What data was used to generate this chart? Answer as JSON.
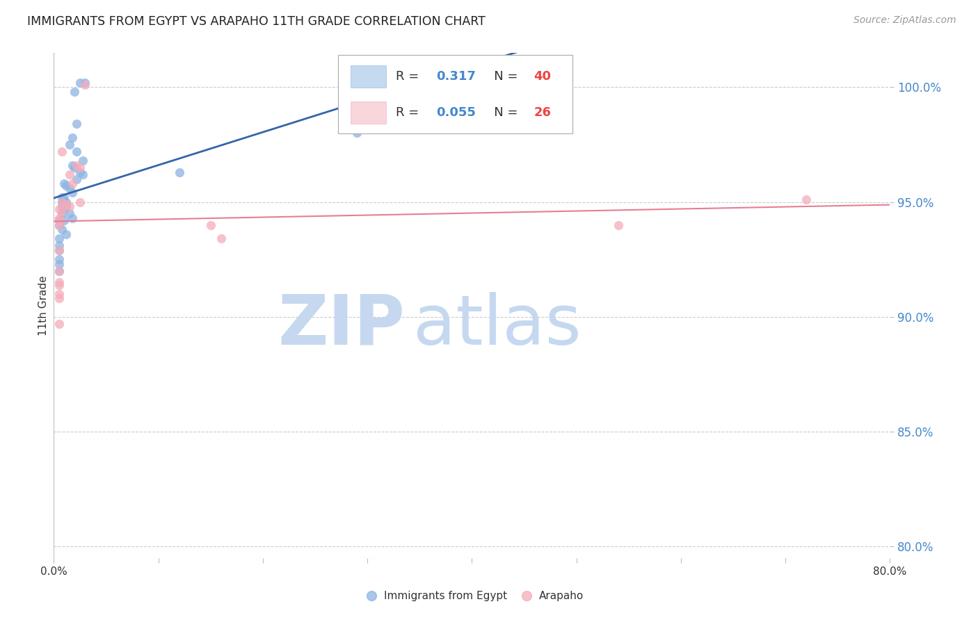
{
  "title": "IMMIGRANTS FROM EGYPT VS ARAPAHO 11TH GRADE CORRELATION CHART",
  "source": "Source: ZipAtlas.com",
  "ylabel": "11th Grade",
  "xlim": [
    0.0,
    0.8
  ],
  "ylim": [
    0.795,
    1.015
  ],
  "yticks": [
    0.8,
    0.85,
    0.9,
    0.95,
    1.0
  ],
  "ytick_labels": [
    "80.0%",
    "85.0%",
    "90.0%",
    "95.0%",
    "100.0%"
  ],
  "xtick_labels": [
    "0.0%",
    "",
    "",
    "",
    "",
    "",
    "",
    "",
    "80.0%"
  ],
  "legend_r1_text": "R = ",
  "legend_r1_val": "0.317",
  "legend_n1_text": "N = ",
  "legend_n1_val": "40",
  "legend_r2_text": "R = ",
  "legend_r2_val": "0.055",
  "legend_n2_text": "N = ",
  "legend_n2_val": "26",
  "blue_color": "#8DB4E2",
  "pink_color": "#F4ACBA",
  "line_blue": "#3465A8",
  "line_pink": "#E87D94",
  "marker_size": 90,
  "blue_x": [
    0.025,
    0.03,
    0.02,
    0.022,
    0.018,
    0.015,
    0.022,
    0.028,
    0.018,
    0.02,
    0.025,
    0.028,
    0.022,
    0.01,
    0.012,
    0.015,
    0.018,
    0.01,
    0.008,
    0.008,
    0.012,
    0.008,
    0.012,
    0.01,
    0.008,
    0.015,
    0.018,
    0.01,
    0.005,
    0.005,
    0.008,
    0.012,
    0.005,
    0.005,
    0.005,
    0.005,
    0.005,
    0.005,
    0.12,
    0.29
  ],
  "blue_y": [
    1.002,
    1.002,
    0.998,
    0.984,
    0.978,
    0.975,
    0.972,
    0.968,
    0.966,
    0.965,
    0.963,
    0.962,
    0.96,
    0.958,
    0.957,
    0.956,
    0.954,
    0.952,
    0.952,
    0.95,
    0.95,
    0.948,
    0.948,
    0.947,
    0.945,
    0.945,
    0.943,
    0.942,
    0.942,
    0.94,
    0.938,
    0.936,
    0.934,
    0.931,
    0.929,
    0.925,
    0.923,
    0.92,
    0.963,
    0.98
  ],
  "pink_x": [
    0.03,
    0.008,
    0.022,
    0.025,
    0.015,
    0.018,
    0.025,
    0.008,
    0.012,
    0.015,
    0.005,
    0.008,
    0.005,
    0.005,
    0.005,
    0.16,
    0.005,
    0.005,
    0.005,
    0.005,
    0.005,
    0.15,
    0.005,
    0.005,
    0.54,
    0.72
  ],
  "pink_y": [
    1.001,
    0.972,
    0.966,
    0.965,
    0.962,
    0.958,
    0.95,
    0.95,
    0.949,
    0.948,
    0.947,
    0.946,
    0.943,
    0.942,
    0.94,
    0.934,
    0.929,
    0.92,
    0.915,
    0.914,
    0.91,
    0.94,
    0.908,
    0.897,
    0.94,
    0.951
  ],
  "background_color": "#FFFFFF",
  "watermark_zip": "ZIP",
  "watermark_atlas": "atlas",
  "watermark_color_zip": "#C5D8F0",
  "watermark_color_atlas": "#C5D8F0",
  "text_color": "#333333",
  "axis_label_color": "#4488CC",
  "source_color": "#999999"
}
